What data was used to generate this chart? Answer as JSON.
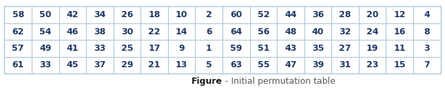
{
  "table_data": [
    [
      58,
      50,
      42,
      34,
      26,
      18,
      10,
      2,
      60,
      52,
      44,
      36,
      28,
      20,
      12,
      4
    ],
    [
      62,
      54,
      46,
      38,
      30,
      22,
      14,
      6,
      64,
      56,
      48,
      40,
      32,
      24,
      16,
      8
    ],
    [
      57,
      49,
      41,
      33,
      25,
      17,
      9,
      1,
      59,
      51,
      43,
      35,
      27,
      19,
      11,
      3
    ],
    [
      61,
      33,
      45,
      37,
      29,
      21,
      13,
      5,
      63,
      55,
      47,
      39,
      31,
      23,
      15,
      7
    ]
  ],
  "caption_bold": "Figure",
  "caption_normal": " - Initial permutation table",
  "border_color": "#adc6d8",
  "text_color": "#1f3864",
  "caption_bold_color": "#1a1a1a",
  "caption_normal_color": "#595959",
  "background_color": "#ffffff",
  "cell_fontsize": 9,
  "caption_fontsize": 9,
  "figsize": [
    6.46,
    1.34
  ],
  "dpi": 100
}
